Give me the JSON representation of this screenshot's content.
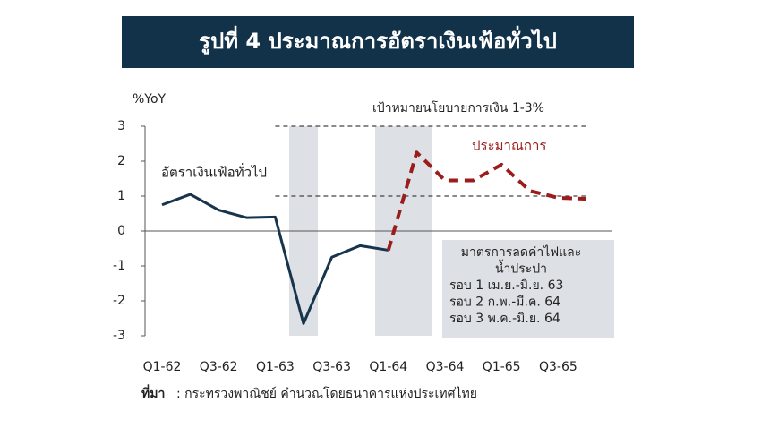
{
  "chart_data": {
    "type": "line",
    "title": "รูปที่ 4 ประมาณการอัตราเงินเฟ้อทั่วไป",
    "y_label": "%YoY",
    "categories": [
      "Q1-62",
      null,
      "Q3-62",
      null,
      "Q1-63",
      null,
      "Q3-63",
      null,
      "Q1-64",
      null,
      "Q3-64",
      null,
      "Q1-65",
      null,
      "Q3-65",
      null
    ],
    "series": [
      {
        "name": "อัตราเงินเฟ้อทั่วไป",
        "color": "#17344d",
        "dashed": false,
        "values": [
          0.75,
          1.05,
          0.6,
          0.38,
          0.4,
          -2.65,
          -0.75,
          -0.42,
          -0.55,
          null,
          null,
          null,
          null,
          null,
          null,
          null
        ]
      },
      {
        "name": "ประมาณการ",
        "color": "#9b1c1c",
        "dashed": true,
        "values": [
          null,
          null,
          null,
          null,
          null,
          null,
          null,
          null,
          -0.55,
          2.25,
          1.45,
          1.45,
          1.9,
          1.15,
          0.95,
          0.92
        ]
      }
    ],
    "ylim": [
      -3,
      3
    ],
    "yticks": [
      -3,
      -2,
      -1,
      0,
      1,
      2,
      3
    ],
    "target_range": [
      1,
      3
    ],
    "target_label": "เป้าหมายนโยบายการเงิน 1-3%",
    "annotation_lines": [
      "มาตรการลดค่าไฟและ",
      "น้ำประปา",
      "รอบ 1 เม.ย.-มิ.ย. 63",
      "รอบ 2 ก.พ.-มี.ค. 64",
      "รอบ 3 พ.ค.-มิ.ย. 64"
    ],
    "source_label": "ที่มา",
    "source": ": กระทรวงพาณิชย์ คำนวณโดยธนาคารแห่งประเทศไทย"
  }
}
